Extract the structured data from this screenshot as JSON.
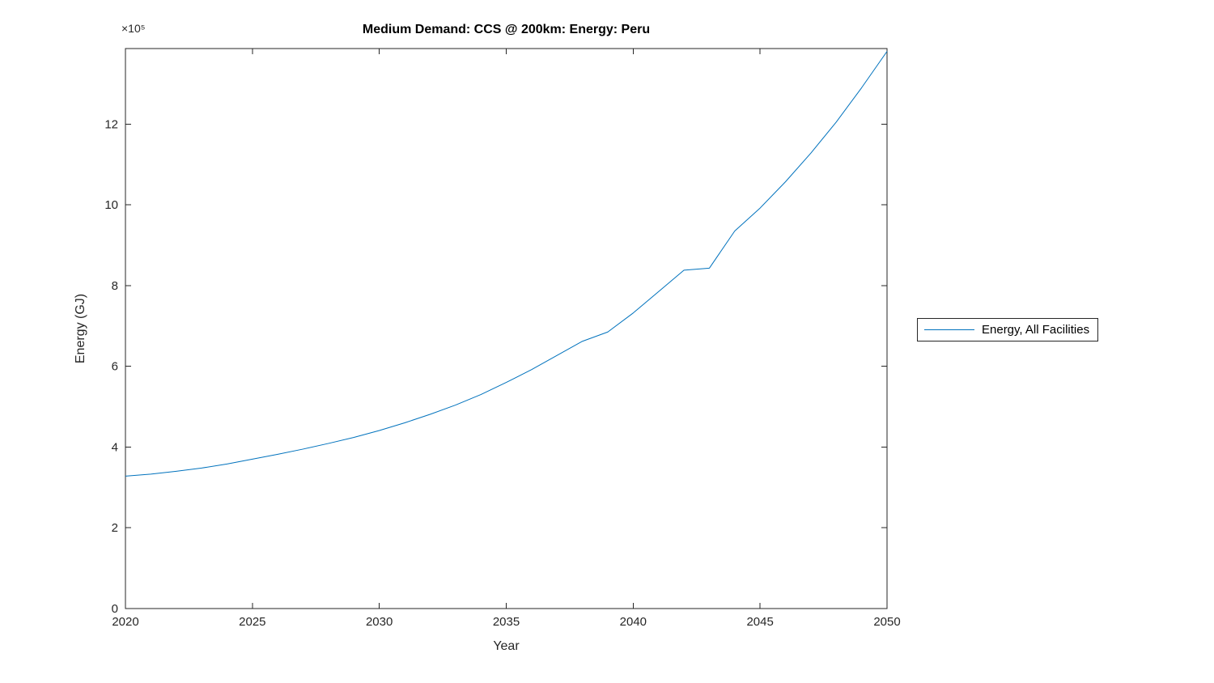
{
  "chart_data": {
    "type": "line",
    "title": "Medium Demand: CCS @ 200km: Energy: Peru",
    "xlabel": "Year",
    "ylabel": "Energy (GJ)",
    "y_offset_label": "×10⁵",
    "y_unit_multiplier": "1e5",
    "xlim": [
      2020,
      2050
    ],
    "ylim": [
      0,
      13.87
    ],
    "xticks": [
      2020,
      2025,
      2030,
      2035,
      2040,
      2045,
      2050
    ],
    "yticks": [
      0,
      2,
      4,
      6,
      8,
      10,
      12
    ],
    "grid": false,
    "axis_color": "#262626",
    "legend": {
      "position": "right-outside",
      "entries": [
        "Energy, All Facilities"
      ]
    },
    "series": [
      {
        "name": "Energy, All Facilities",
        "color": "#0072BD",
        "x": [
          2020,
          2021,
          2022,
          2023,
          2024,
          2025,
          2026,
          2027,
          2028,
          2029,
          2030,
          2031,
          2032,
          2033,
          2034,
          2035,
          2036,
          2037,
          2038,
          2039,
          2040,
          2041,
          2042,
          2043,
          2044,
          2045,
          2046,
          2047,
          2048,
          2049,
          2050
        ],
        "values": [
          3.28,
          3.33,
          3.4,
          3.48,
          3.58,
          3.7,
          3.82,
          3.95,
          4.09,
          4.24,
          4.41,
          4.6,
          4.81,
          5.04,
          5.3,
          5.6,
          5.92,
          6.27,
          6.62,
          6.85,
          7.32,
          7.85,
          8.38,
          8.43,
          9.35,
          9.92,
          10.57,
          11.28,
          12.05,
          12.9,
          13.8
        ]
      }
    ]
  }
}
